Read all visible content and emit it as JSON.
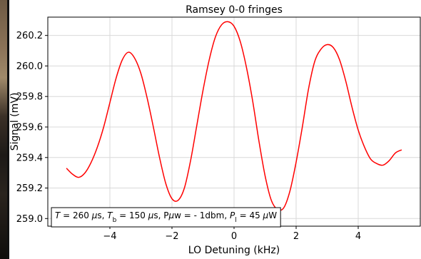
{
  "chart_data": {
    "type": "line",
    "title": "Ramsey 0-0 fringes",
    "xlabel": "LO Detuning (kHz)",
    "ylabel": "Signal (mV)",
    "xlim": [
      -6.0,
      6.0
    ],
    "ylim": [
      258.95,
      260.32
    ],
    "xticks": [
      -4,
      -2,
      0,
      2,
      4
    ],
    "xtick_labels": [
      "−4",
      "−2",
      "0",
      "2",
      "4"
    ],
    "yticks": [
      259.0,
      259.2,
      259.4,
      259.6,
      259.8,
      260.0,
      260.2
    ],
    "ytick_labels": [
      "259.0",
      "259.2",
      "259.4",
      "259.6",
      "259.8",
      "260.0",
      "260.2"
    ],
    "grid": true,
    "annotation": {
      "location": "lower-left",
      "parts": [
        {
          "text": "T",
          "italic": true
        },
        {
          "text": " = 260 "
        },
        {
          "text": "μ",
          "italic": true
        },
        {
          "text": "s, "
        },
        {
          "text": "T",
          "italic": true
        },
        {
          "text": "b",
          "sub": true
        },
        {
          "text": " = 150 "
        },
        {
          "text": "μ",
          "italic": true
        },
        {
          "text": "s, P"
        },
        {
          "text": "μ",
          "italic": true
        },
        {
          "text": "w = - 1dbm, "
        },
        {
          "text": "P",
          "italic": true
        },
        {
          "text": "l",
          "sub": true
        },
        {
          "text": " = 45 "
        },
        {
          "text": "μ",
          "italic": true
        },
        {
          "text": "W"
        }
      ]
    },
    "series": [
      {
        "color": "#ff0000",
        "x": [
          -5.4,
          -5.2,
          -5.0,
          -4.8,
          -4.6,
          -4.4,
          -4.2,
          -4.0,
          -3.8,
          -3.6,
          -3.4,
          -3.2,
          -3.0,
          -2.8,
          -2.6,
          -2.4,
          -2.2,
          -2.0,
          -1.8,
          -1.6,
          -1.4,
          -1.2,
          -1.0,
          -0.8,
          -0.6,
          -0.4,
          -0.2,
          0.0,
          0.2,
          0.4,
          0.6,
          0.8,
          1.0,
          1.2,
          1.4,
          1.6,
          1.8,
          2.0,
          2.2,
          2.4,
          2.6,
          2.8,
          3.0,
          3.2,
          3.4,
          3.6,
          3.8,
          4.0,
          4.2,
          4.4,
          4.6,
          4.8,
          5.0,
          5.2,
          5.4
        ],
        "y": [
          259.33,
          259.29,
          259.27,
          259.3,
          259.37,
          259.47,
          259.6,
          259.76,
          259.92,
          260.04,
          260.09,
          260.05,
          259.95,
          259.79,
          259.6,
          259.4,
          259.23,
          259.13,
          259.12,
          259.2,
          259.38,
          259.61,
          259.84,
          260.04,
          260.19,
          260.27,
          260.29,
          260.26,
          260.16,
          259.99,
          259.77,
          259.51,
          259.28,
          259.12,
          259.06,
          259.07,
          259.18,
          259.37,
          259.6,
          259.85,
          260.03,
          260.11,
          260.14,
          260.12,
          260.04,
          259.9,
          259.73,
          259.58,
          259.47,
          259.39,
          259.36,
          259.35,
          259.38,
          259.43,
          259.45
        ]
      }
    ]
  }
}
